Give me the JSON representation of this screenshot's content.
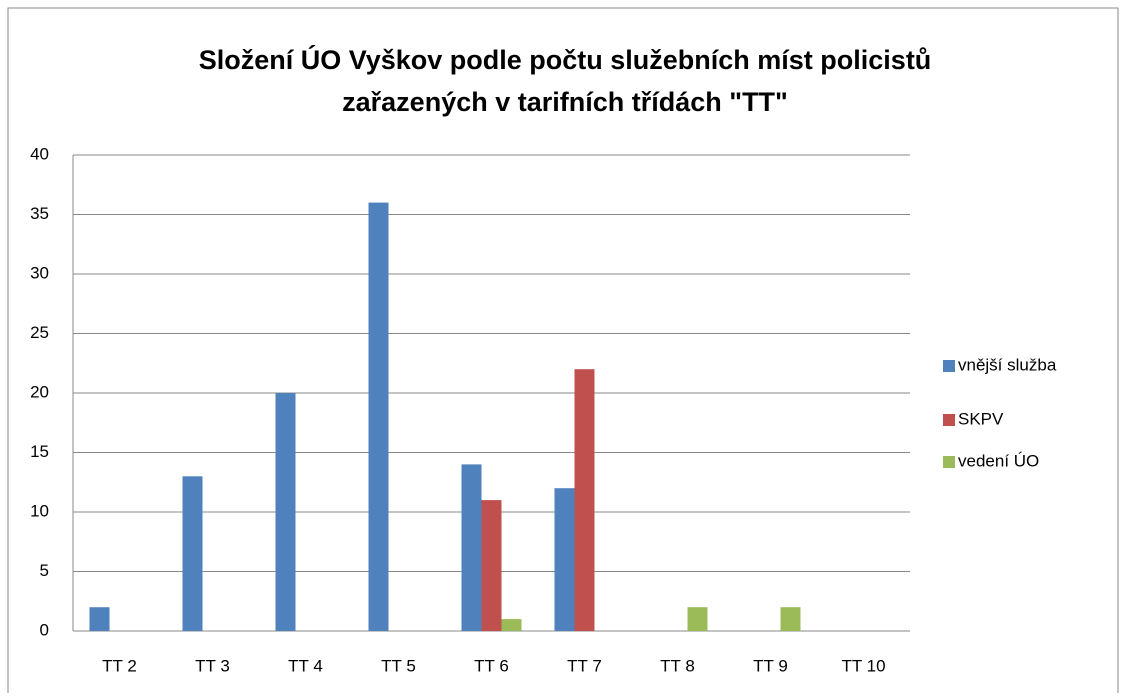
{
  "chart_data": {
    "type": "bar",
    "title": [
      "Složení ÚO Vyškov podle počtu služebních míst policistů",
      "zařazených v tarifních třídách \"TT\""
    ],
    "categories": [
      "TT 2",
      "TT 3",
      "TT 4",
      "TT 5",
      "TT 6",
      "TT 7",
      "TT 8",
      "TT 9",
      "TT 10"
    ],
    "series": [
      {
        "name": "vnější služba",
        "color": "#4f81bd",
        "values": [
          2,
          13,
          20,
          36,
          14,
          12,
          0,
          0,
          0
        ]
      },
      {
        "name": "SKPV",
        "color": "#c0504d",
        "values": [
          0,
          0,
          0,
          0,
          11,
          22,
          0,
          0,
          0
        ]
      },
      {
        "name": "vedení  ÚO",
        "color": "#9bbb59",
        "values": [
          0,
          0,
          0,
          0,
          1,
          0,
          2,
          2,
          0
        ]
      }
    ],
    "ylim": [
      0,
      40
    ],
    "yticks": [
      0,
      5,
      10,
      15,
      20,
      25,
      30,
      35,
      40
    ],
    "grid": true,
    "legend": "right"
  }
}
